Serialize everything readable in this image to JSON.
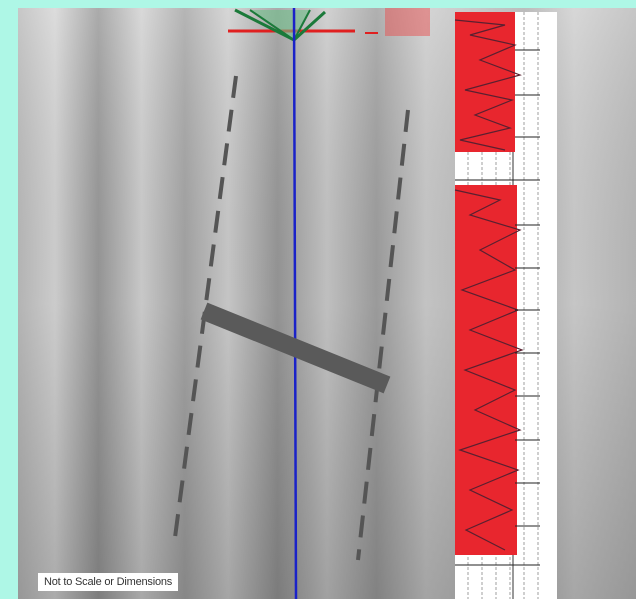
{
  "caption": "Not to Scale or Dimensions"
}
